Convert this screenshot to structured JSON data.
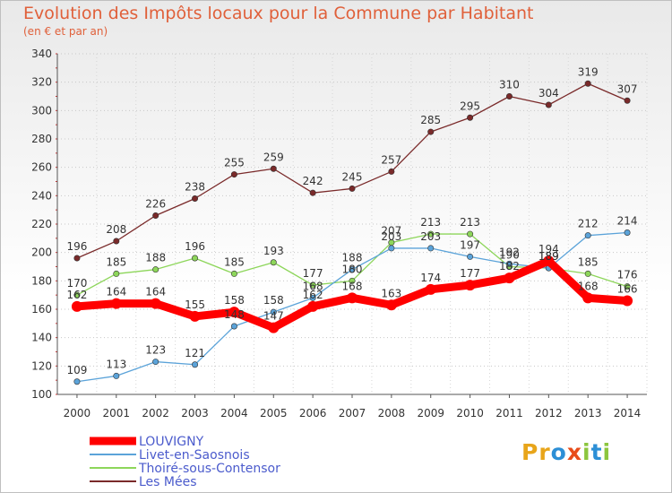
{
  "title": "Evolution des Impôts locaux pour la Commune par Habitant",
  "subtitle": "(en € et par an)",
  "logo_text": "Proxiti",
  "chart_data": {
    "type": "line",
    "title": "Evolution des Impôts locaux pour la Commune par Habitant",
    "subtitle": "(en € et par an)",
    "x": [
      2000,
      2001,
      2002,
      2003,
      2004,
      2005,
      2006,
      2007,
      2008,
      2009,
      2010,
      2011,
      2012,
      2013,
      2014
    ],
    "ylim": [
      100,
      340
    ],
    "yticks": [
      100,
      120,
      140,
      160,
      180,
      200,
      220,
      240,
      260,
      280,
      300,
      320,
      340
    ],
    "grid": "horizontal dotted",
    "legend": "bottom-left",
    "series": [
      {
        "name": "LOUVIGNY",
        "color": "#ff0000",
        "values": [
          162,
          164,
          164,
          155,
          158,
          147,
          162,
          168,
          163,
          174,
          177,
          182,
          194,
          168,
          166
        ]
      },
      {
        "name": "Livet-en-Saosnois",
        "color": "#5ba3d9",
        "values": [
          109,
          113,
          123,
          121,
          148,
          158,
          168,
          188,
          203,
          203,
          197,
          192,
          189,
          212,
          214
        ]
      },
      {
        "name": "Thoiré-sous-Contensor",
        "color": "#8dd65a",
        "values": [
          170,
          185,
          188,
          196,
          185,
          193,
          177,
          180,
          207,
          213,
          213,
          190,
          189,
          185,
          176
        ]
      },
      {
        "name": "Les Mées",
        "color": "#7a2a2a",
        "values": [
          196,
          208,
          226,
          238,
          255,
          259,
          242,
          245,
          257,
          285,
          295,
          310,
          304,
          319,
          307
        ]
      }
    ]
  }
}
